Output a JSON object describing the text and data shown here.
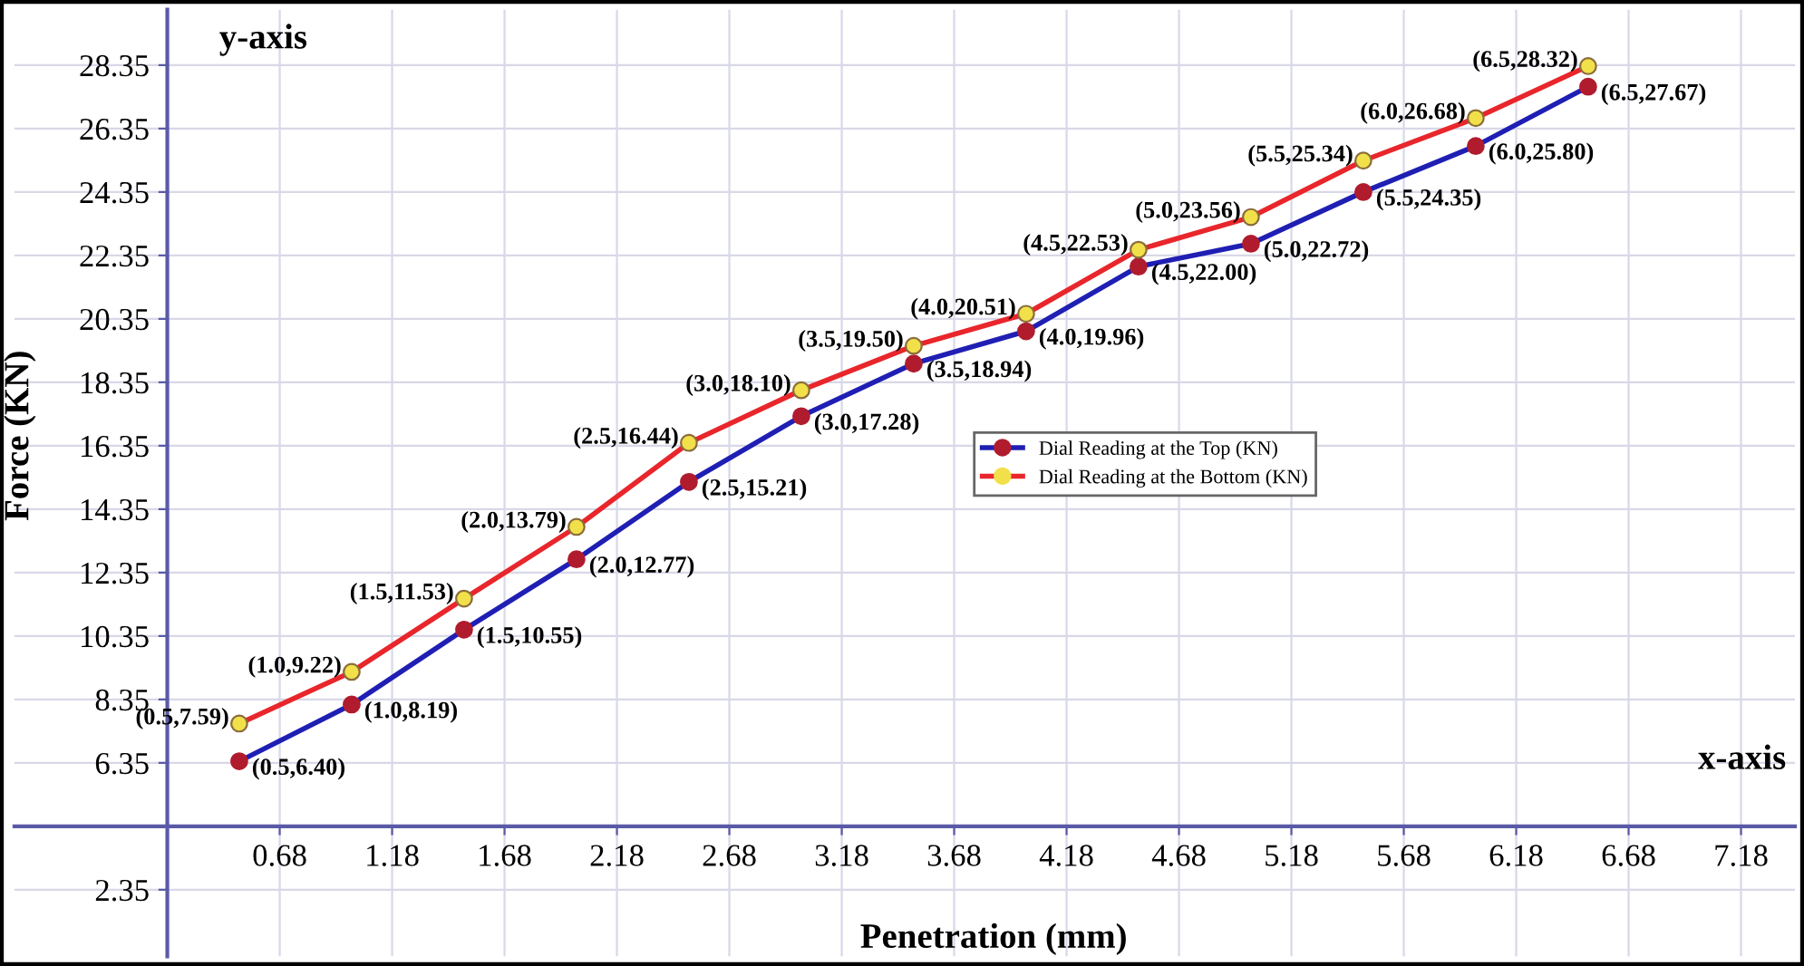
{
  "chart_data": {
    "type": "line",
    "xlabel": "Penetration (mm)",
    "ylabel": "Force (KN)",
    "annotations": [
      "y-axis",
      "x-axis"
    ],
    "x": [
      0.5,
      1.0,
      1.5,
      2.0,
      2.5,
      3.0,
      3.5,
      4.0,
      4.5,
      5.0,
      5.5,
      6.0,
      6.5
    ],
    "series": [
      {
        "name": "Dial Reading at the Top (KN)",
        "color": "#1f1fb4",
        "colors": [
          "#b01c2e",
          "#b01c2e",
          "#b01c2e",
          "#b01c2e",
          "#b01c2e",
          "#b01c2e",
          "#b01c2e",
          "#b01c2e",
          "#b01c2e",
          "#b01c2e",
          "#b01c2e",
          "#b01c2e",
          "#b01c2e"
        ],
        "values": [
          6.4,
          8.19,
          10.55,
          12.77,
          15.21,
          17.28,
          18.94,
          19.96,
          22.0,
          22.72,
          24.35,
          25.8,
          27.67
        ],
        "value_labels": [
          "(0.5,6.40)",
          "(1.0,8.19)",
          "(1.5,10.55)",
          "(2.0,12.77)",
          "(2.5,15.21)",
          "(3.0,17.28)",
          "(3.5,18.94)",
          "(4.0,19.96)",
          "(4.5,22.00)",
          "(5.0,22.72)",
          "(5.5,24.35)",
          "(6.0,25.80)",
          "(6.5,27.67)"
        ]
      },
      {
        "name": "Dial Reading at the Bottom (KN)",
        "color": "#e8262b",
        "colors": [
          "#f2e04a",
          "#f2e04a",
          "#f2e04a",
          "#f2e04a",
          "#f2e04a",
          "#f2e04a",
          "#f2e04a",
          "#f2e04a",
          "#f2e04a",
          "#f2e04a",
          "#f2e04a",
          "#f2e04a",
          "#f2e04a"
        ],
        "values": [
          7.59,
          9.22,
          11.53,
          13.79,
          16.44,
          18.1,
          19.5,
          20.51,
          22.53,
          23.56,
          25.34,
          26.68,
          28.32
        ],
        "value_labels": [
          "(0.5,7.59)",
          "(1.0,9.22)",
          "(1.5,11.53)",
          "(2.0,13.79)",
          "(2.5,16.44)",
          "(3.0,18.10)",
          "(3.5,19.50)",
          "(4.0,20.51)",
          "(4.5,22.53)",
          "(5.0,23.56)",
          "(5.5,25.34)",
          "(6.0,26.68)",
          "(6.5,28.32)"
        ]
      }
    ],
    "xlim": [
      -0.5,
      7.42
    ],
    "ylim": [
      0.25,
      30.1
    ],
    "xticks": [
      0.68,
      1.18,
      1.68,
      2.18,
      2.68,
      3.18,
      3.68,
      4.18,
      4.68,
      5.18,
      5.68,
      6.18,
      6.68,
      7.18
    ],
    "yticks": [
      2.35,
      6.35,
      8.35,
      10.35,
      12.35,
      14.35,
      16.35,
      18.35,
      20.35,
      22.35,
      24.35,
      26.35,
      28.35
    ],
    "grid": true,
    "legend": "center",
    "marker": "circle",
    "line_style": "solid"
  }
}
